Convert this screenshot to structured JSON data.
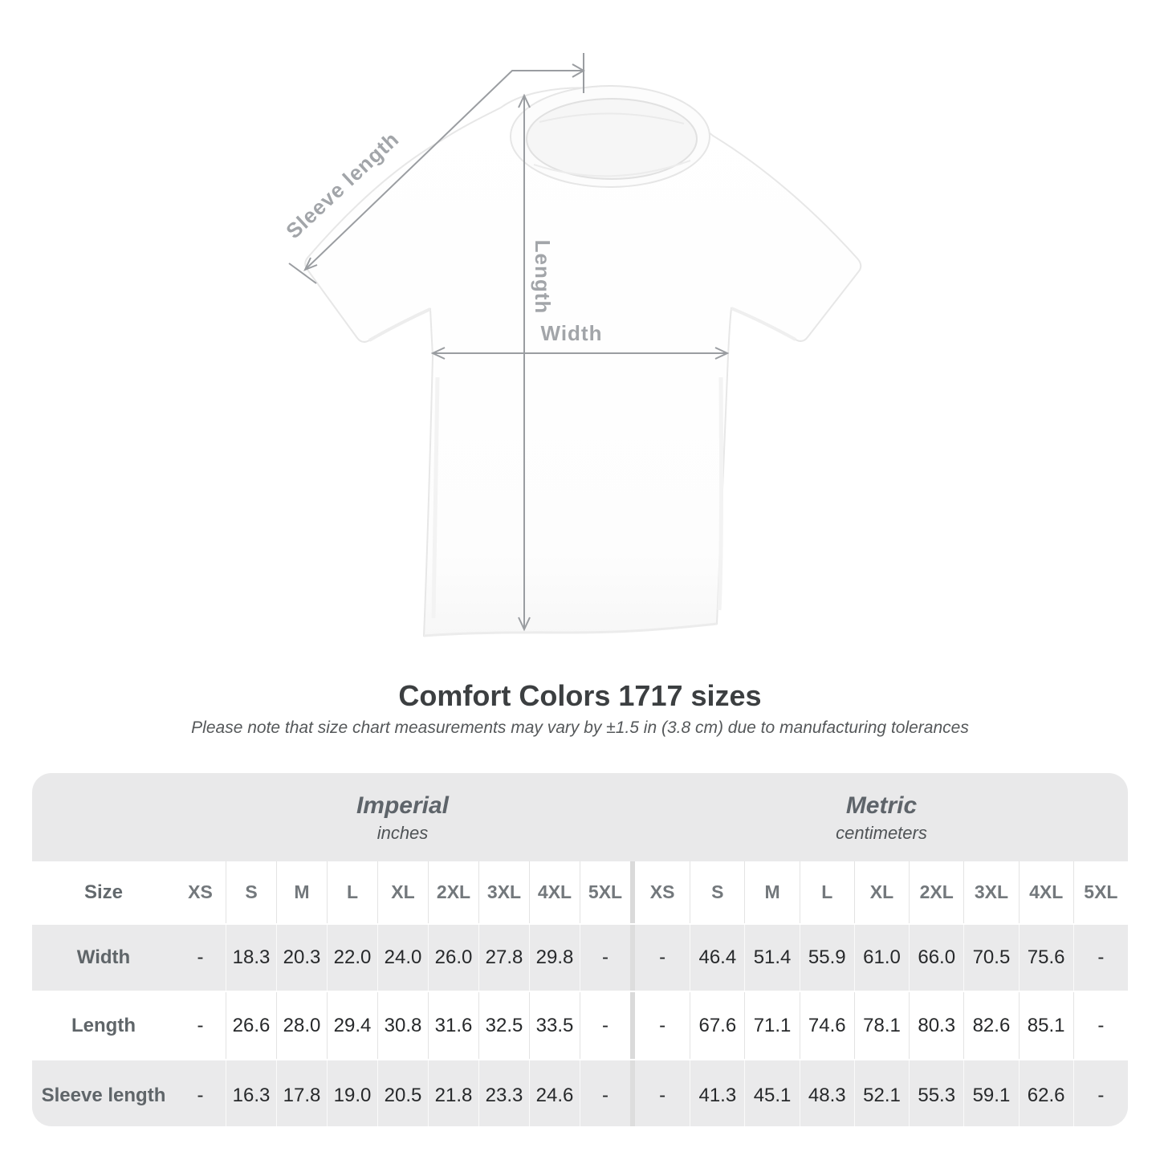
{
  "figure": {
    "labels": {
      "sleeve_length": "Sleeve length",
      "length": "Length",
      "width": "Width"
    },
    "line_color": "#9a9da1",
    "label_color": "#a2a5a9"
  },
  "title": "Comfort Colors 1717 sizes",
  "note": "Please note that size chart measurements may vary by ±1.5 in (3.8 cm) due to manufacturing tolerances",
  "table": {
    "size_label": "Size",
    "sections": [
      {
        "name": "Imperial",
        "unit": "inches"
      },
      {
        "name": "Metric",
        "unit": "centimeters"
      }
    ],
    "sizes": [
      "XS",
      "S",
      "M",
      "L",
      "XL",
      "2XL",
      "3XL",
      "4XL",
      "5XL"
    ],
    "rows": [
      {
        "label": "Width",
        "imperial": [
          "-",
          "18.3",
          "20.3",
          "22.0",
          "24.0",
          "26.0",
          "27.8",
          "29.8",
          "-"
        ],
        "metric": [
          "-",
          "46.4",
          "51.4",
          "55.9",
          "61.0",
          "66.0",
          "70.5",
          "75.6",
          "-"
        ]
      },
      {
        "label": "Length",
        "imperial": [
          "-",
          "26.6",
          "28.0",
          "29.4",
          "30.8",
          "31.6",
          "32.5",
          "33.5",
          "-"
        ],
        "metric": [
          "-",
          "67.6",
          "71.1",
          "74.6",
          "78.1",
          "80.3",
          "82.6",
          "85.1",
          "-"
        ]
      },
      {
        "label": "Sleeve length",
        "imperial": [
          "-",
          "16.3",
          "17.8",
          "19.0",
          "20.5",
          "21.8",
          "23.3",
          "24.6",
          "-"
        ],
        "metric": [
          "-",
          "41.3",
          "45.1",
          "48.3",
          "52.1",
          "55.3",
          "59.1",
          "62.6",
          "-"
        ]
      }
    ]
  }
}
